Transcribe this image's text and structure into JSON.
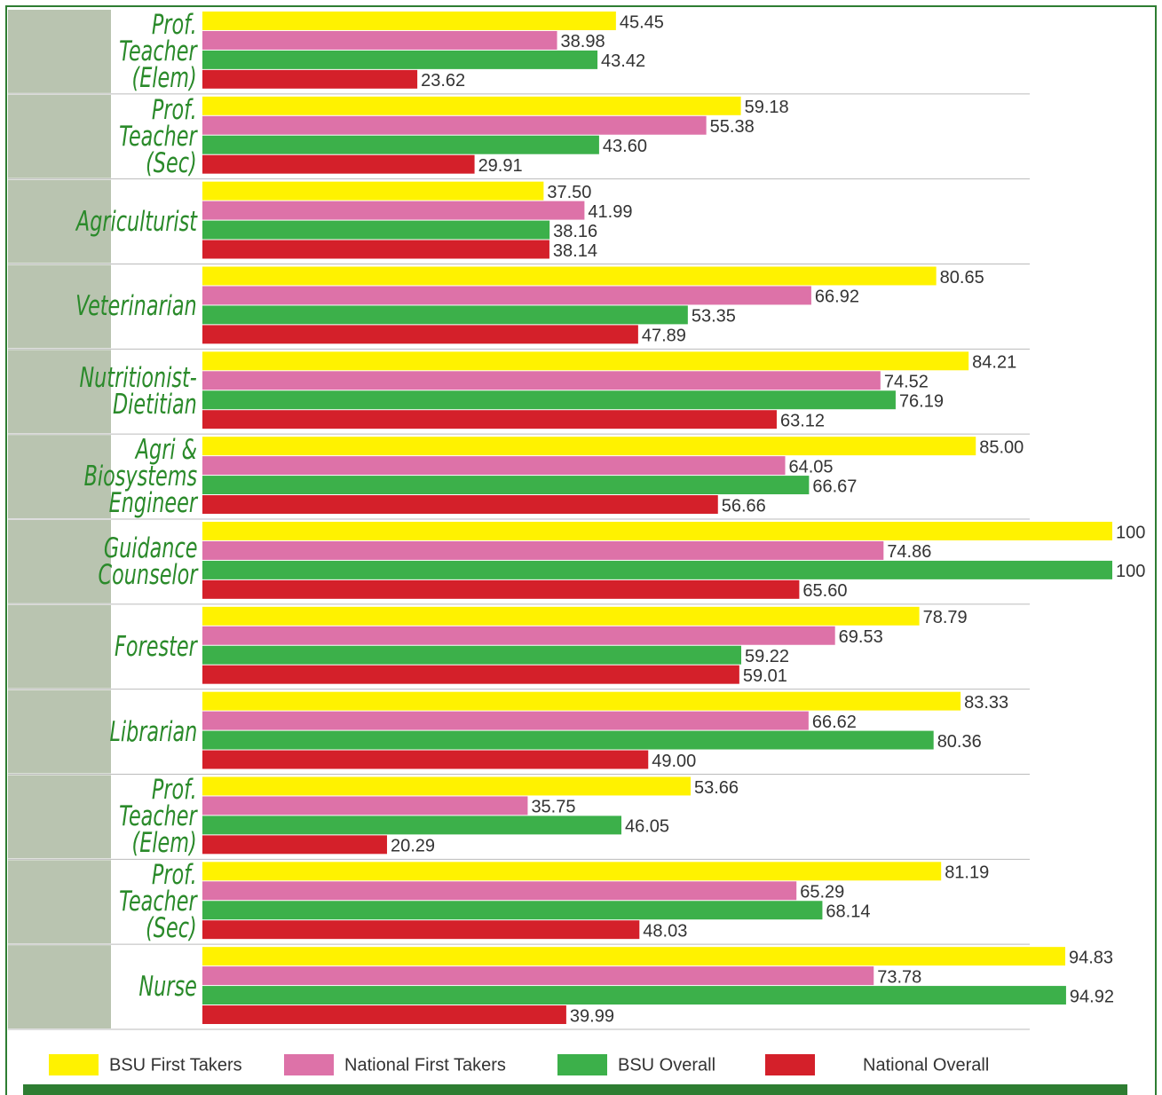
{
  "chart_data": {
    "type": "bar",
    "orientation": "horizontal",
    "categories": [
      "Prof.\nTeacher\n(Elem)",
      "Prof.\nTeacher\n(Sec)",
      "Agriculturist",
      "Veterinarian",
      "Nutritionist-\nDietitian",
      "Agri &\nBiosystems\nEngineer",
      "Guidance\nCounselor",
      "Forester",
      "Librarian",
      "Prof.\nTeacher\n(Elem)",
      "Prof.\nTeacher\n(Sec)",
      "Nurse"
    ],
    "series": [
      {
        "name": "BSU First Takers",
        "color": "#fff200",
        "values": [
          45.45,
          59.18,
          37.5,
          80.65,
          84.21,
          85.0,
          100,
          78.79,
          83.33,
          53.66,
          81.19,
          94.83
        ],
        "value_labels": [
          "45.45",
          "59.18",
          "37.50",
          "80.65",
          "84.21",
          "85.00",
          "100",
          "78.79",
          "83.33",
          "53.66",
          "81.19",
          "94.83"
        ]
      },
      {
        "name": "National First Takers",
        "color": "#dd72a8",
        "values": [
          38.98,
          55.38,
          41.99,
          66.92,
          74.52,
          64.05,
          74.86,
          69.53,
          66.62,
          35.75,
          65.29,
          73.78
        ],
        "value_labels": [
          "38.98",
          "55.38",
          "41.99",
          "66.92",
          "74.52",
          "64.05",
          "74.86",
          "69.53",
          "66.62",
          "35.75",
          "65.29",
          "73.78"
        ]
      },
      {
        "name": "BSU Overall",
        "color": "#3cb04a",
        "values": [
          43.42,
          43.6,
          38.16,
          53.35,
          76.19,
          66.67,
          100,
          59.22,
          80.36,
          46.05,
          68.14,
          94.92
        ],
        "value_labels": [
          "43.42",
          "43.60",
          "38.16",
          "53.35",
          "76.19",
          "66.67",
          "100",
          "59.22",
          "80.36",
          "46.05",
          "68.14",
          "94.92"
        ]
      },
      {
        "name": "National Overall",
        "color": "#d4202a",
        "values": [
          23.62,
          29.91,
          38.14,
          47.89,
          63.12,
          56.66,
          65.6,
          59.01,
          49.0,
          20.29,
          48.03,
          39.99
        ],
        "value_labels": [
          "23.62",
          "29.91",
          "38.14",
          "47.89",
          "63.12",
          "56.66",
          "65.60",
          "59.01",
          "49.00",
          "20.29",
          "48.03",
          "39.99"
        ]
      }
    ],
    "xlim": [
      0,
      100
    ]
  }
}
